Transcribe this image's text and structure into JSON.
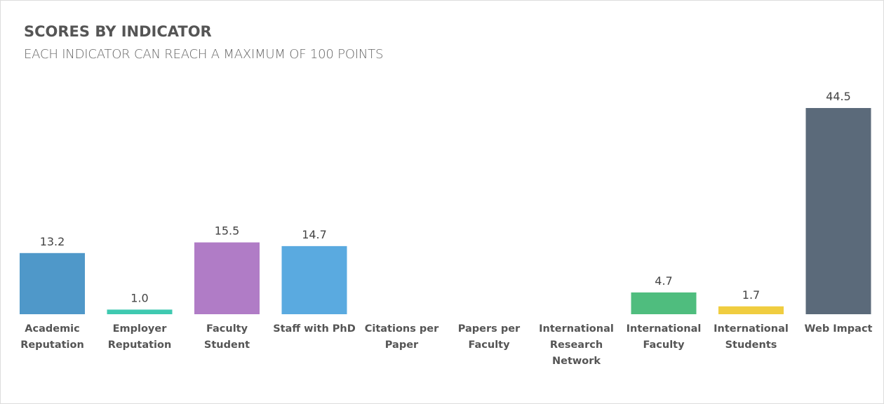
{
  "chart_data": {
    "type": "bar",
    "title": "SCORES BY INDICATOR",
    "subtitle": "EACH INDICATOR CAN REACH A MAXIMUM OF 100 POINTS",
    "categories": [
      "Academic Reputation",
      "Employer Reputation",
      "Faculty Student",
      "Staff with PhD",
      "Citations per Paper",
      "Papers per Faculty",
      "International Research Network",
      "International Faculty",
      "International Students",
      "Web Impact"
    ],
    "values": [
      13.2,
      1.0,
      15.5,
      14.7,
      null,
      null,
      null,
      4.7,
      1.7,
      44.5
    ],
    "value_labels": [
      "13.2",
      "1.0",
      "15.5",
      "14.7",
      null,
      null,
      null,
      "4.7",
      "1.7",
      "44.5"
    ],
    "colors": [
      "#4f98c9",
      "#3fc9b0",
      "#b07cc6",
      "#5aaae0",
      null,
      null,
      null,
      "#4fbd7e",
      "#f0cd40",
      "#5b6a7a"
    ]
  }
}
